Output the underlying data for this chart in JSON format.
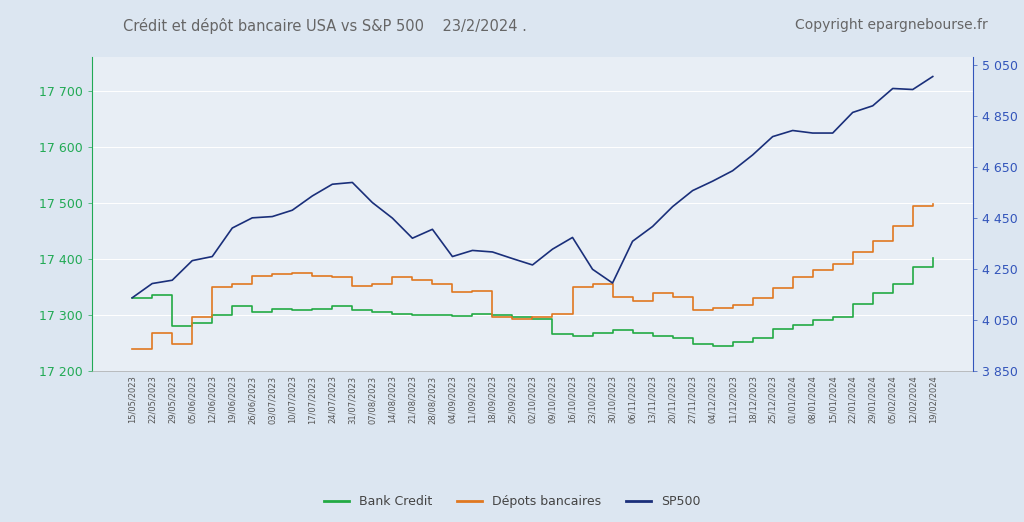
{
  "title": "Crédit et dépôt bancaire USA vs S&P 500    23/2/2024 .",
  "copyright": "Copyright epargnebourse.fr",
  "title_color": "#666666",
  "background_color": "#dce6f1",
  "plot_background": "#e8eef5",
  "left_axis_color": "#22aa55",
  "right_axis_color": "#3355bb",
  "left_ylim": [
    17200,
    17760
  ],
  "right_ylim": [
    3850,
    5080
  ],
  "left_yticks": [
    17200,
    17300,
    17400,
    17500,
    17600,
    17700
  ],
  "right_yticks": [
    3850,
    4050,
    4250,
    4450,
    4650,
    4850,
    5050
  ],
  "dates": [
    "15/05/2023",
    "22/05/2023",
    "29/05/2023",
    "05/06/2023",
    "12/06/2023",
    "19/06/2023",
    "26/06/2023",
    "03/07/2023",
    "10/07/2023",
    "17/07/2023",
    "24/07/2023",
    "31/07/2023",
    "07/08/2023",
    "14/08/2023",
    "21/08/2023",
    "28/08/2023",
    "04/09/2023",
    "11/09/2023",
    "18/09/2023",
    "25/09/2023",
    "02/10/2023",
    "09/10/2023",
    "16/10/2023",
    "23/10/2023",
    "30/10/2023",
    "06/11/2023",
    "13/11/2023",
    "20/11/2023",
    "27/11/2023",
    "04/12/2023",
    "11/12/2023",
    "18/12/2023",
    "25/12/2023",
    "01/01/2024",
    "08/01/2024",
    "15/01/2024",
    "22/01/2024",
    "29/01/2024",
    "05/02/2024",
    "12/02/2024",
    "19/02/2024"
  ],
  "bank_credit": [
    17330,
    17335,
    17280,
    17285,
    17300,
    17315,
    17305,
    17310,
    17308,
    17310,
    17315,
    17308,
    17305,
    17302,
    17300,
    17300,
    17298,
    17302,
    17300,
    17296,
    17292,
    17265,
    17262,
    17268,
    17272,
    17268,
    17262,
    17258,
    17248,
    17244,
    17252,
    17258,
    17275,
    17282,
    17290,
    17295,
    17320,
    17338,
    17355,
    17385,
    17402
  ],
  "deposits": [
    17238,
    17268,
    17248,
    17295,
    17350,
    17355,
    17370,
    17372,
    17375,
    17370,
    17368,
    17352,
    17355,
    17368,
    17362,
    17355,
    17340,
    17342,
    17295,
    17292,
    17295,
    17302,
    17350,
    17355,
    17332,
    17325,
    17338,
    17332,
    17308,
    17312,
    17318,
    17330,
    17348,
    17368,
    17380,
    17390,
    17412,
    17432,
    17458,
    17495,
    17498
  ],
  "sp500": [
    4136,
    4192,
    4205,
    4282,
    4298,
    4410,
    4450,
    4455,
    4480,
    4536,
    4582,
    4589,
    4510,
    4449,
    4370,
    4405,
    4298,
    4322,
    4316,
    4290,
    4265,
    4327,
    4373,
    4248,
    4194,
    4358,
    4416,
    4494,
    4557,
    4594,
    4635,
    4697,
    4769,
    4793,
    4783,
    4783,
    4864,
    4890,
    4958,
    4954,
    5005
  ],
  "legend_labels": [
    "Bank Credit",
    "Dépots bancaires",
    "SP500"
  ],
  "legend_colors": [
    "#22aa44",
    "#e07820",
    "#1a2f7a"
  ],
  "bank_credit_color": "#22aa44",
  "deposit_color": "#e07820",
  "sp500_color": "#1a2f7a",
  "linewidth": 1.2
}
